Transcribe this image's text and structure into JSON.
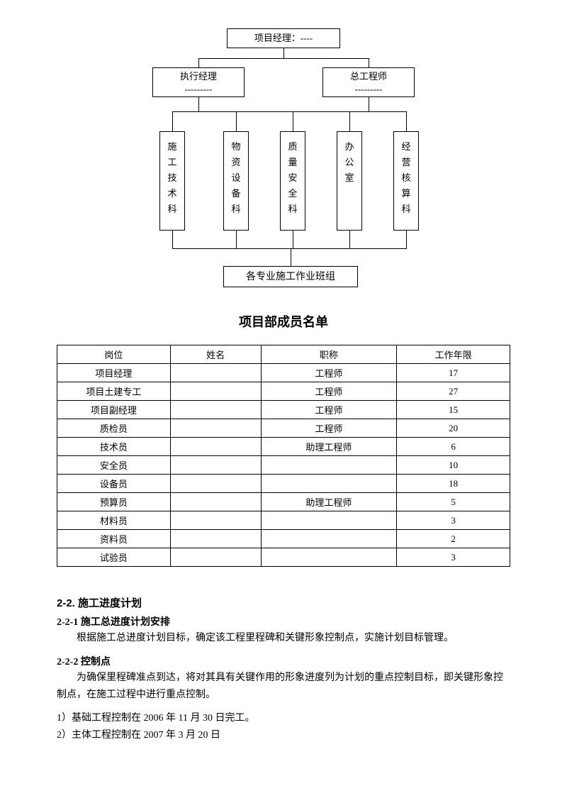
{
  "org": {
    "top": "项目经理：----",
    "mid_left_l1": "执行经理",
    "mid_left_l2": "---------",
    "mid_right_l1": "总工程师",
    "mid_right_l2": "---------",
    "depts": [
      "施工技术科",
      "物资设备科",
      "质量安全科",
      "办公室",
      "经营核算科"
    ],
    "bottom": "各专业施工作业班组"
  },
  "title": "项目部成员名单",
  "table": {
    "headers": [
      "岗位",
      "姓名",
      "职称",
      "工作年限"
    ],
    "rows": [
      [
        "项目经理",
        "",
        "工程师",
        "17"
      ],
      [
        "项目土建专工",
        "",
        "工程师",
        "27"
      ],
      [
        "项目副经理",
        "",
        "工程师",
        "15"
      ],
      [
        "质检员",
        "",
        "工程师",
        "20"
      ],
      [
        "技术员",
        "",
        "助理工程师",
        "6"
      ],
      [
        "安全员",
        "",
        "",
        "10"
      ],
      [
        "设备员",
        "",
        "",
        "18"
      ],
      [
        "预算员",
        "",
        "助理工程师",
        "5"
      ],
      [
        "材料员",
        "",
        "",
        "3"
      ],
      [
        "资料员",
        "",
        "",
        "2"
      ],
      [
        "试验员",
        "",
        "",
        "3"
      ]
    ]
  },
  "section": {
    "h1": "2-2. 施工进度计划",
    "s1h": "2-2-1 施工总进度计划安排",
    "s1p": "根据施工总进度计划目标，确定该工程里程碑和关键形象控制点，实施计划目标管理。",
    "s2h": "2-2-2 控制点",
    "s2p": "为确保里程碑准点到达，将对其具有关键作用的形象进度列为计划的重点控制目标，即关键形象控制点，在施工过程中进行重点控制。",
    "s2i1": "1）基础工程控制在 2006 年 11 月 30 日完工。",
    "s2i2": "2）主体工程控制在 2007 年 3 月 20 日"
  }
}
